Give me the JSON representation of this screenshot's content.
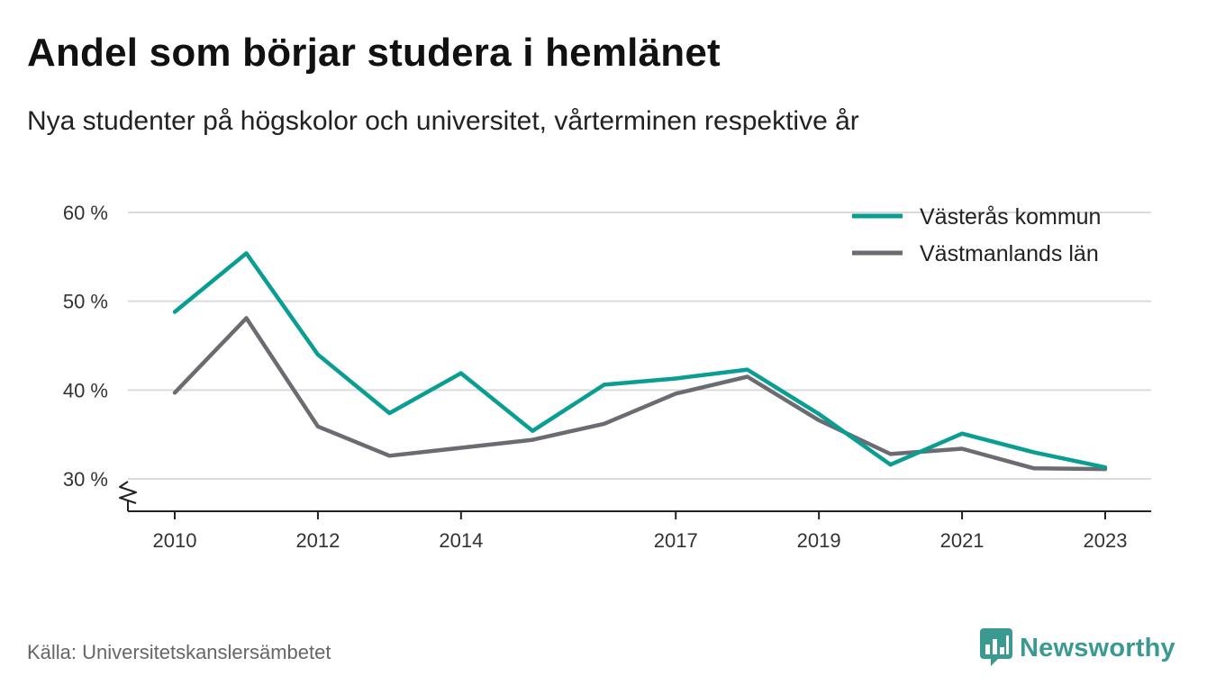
{
  "title": "Andel som börjar studera i hemlänet",
  "subtitle": "Nya studenter på högskolor och universitet, vårterminen respektive år",
  "source": "Källa: Universitetskanslersämbetet",
  "brand": {
    "name": "Newsworthy",
    "color": "#3a9a92",
    "icon": "newsworthy-logo-icon"
  },
  "chart_data": {
    "type": "line",
    "x": [
      2010,
      2011,
      2012,
      2013,
      2014,
      2015,
      2016,
      2017,
      2018,
      2019,
      2020,
      2021,
      2022,
      2023
    ],
    "x_tick_labels": [
      "2010",
      "2012",
      "2014",
      "2017",
      "2019",
      "2021",
      "2023"
    ],
    "x_ticks": [
      2010,
      2012,
      2014,
      2017,
      2019,
      2021,
      2023
    ],
    "y_tick_labels": [
      "30 %",
      "40 %",
      "50 %",
      "60 %"
    ],
    "y_ticks": [
      30,
      40,
      50,
      60
    ],
    "ylim": [
      26.5,
      60
    ],
    "y_axis_break": true,
    "grid": true,
    "legend_position": "top-right",
    "series": [
      {
        "name": "Västerås kommun",
        "color": "#0a9e93",
        "values": [
          48.8,
          55.4,
          44.0,
          37.4,
          41.9,
          35.4,
          40.6,
          41.3,
          42.3,
          37.3,
          31.6,
          35.1,
          33.0,
          31.3
        ]
      },
      {
        "name": "Västmanlands län",
        "color": "#6b6b72",
        "values": [
          39.7,
          48.1,
          35.9,
          32.6,
          33.5,
          34.4,
          36.2,
          39.6,
          41.5,
          36.6,
          32.8,
          33.4,
          31.2,
          31.1
        ]
      }
    ]
  }
}
